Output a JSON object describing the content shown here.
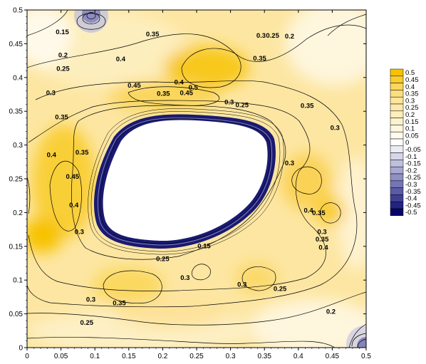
{
  "chart_data": {
    "type": "contour",
    "title": "",
    "xlabel": "",
    "ylabel": "",
    "xlim": [
      0,
      0.5
    ],
    "ylim": [
      0,
      0.5
    ],
    "x_ticks": [
      "0",
      "0.05",
      "0.1",
      "0.15",
      "0.2",
      "0.25",
      "0.3",
      "0.35",
      "0.4",
      "0.45",
      "0.5"
    ],
    "y_ticks": [
      "0",
      "0.05",
      "0.1",
      "0.15",
      "0.2",
      "0.25",
      "0.3",
      "0.35",
      "0.4",
      "0.45",
      "0.5"
    ],
    "legend": {
      "placement": "right",
      "levels": [
        "0.5",
        "0.45",
        "0.4",
        "0.35",
        "0.3",
        "0.25",
        "0.2",
        "0.15",
        "0.1",
        "0.05",
        "0",
        "-0.05",
        "-0.1",
        "-0.15",
        "-0.2",
        "-0.25",
        "-0.3",
        "-0.35",
        "-0.4",
        "-0.45",
        "-0.5"
      ],
      "colors": [
        "#f7c200",
        "#f9cd2e",
        "#fad65c",
        "#fcdf7d",
        "#fde59a",
        "#fde9ab",
        "#fdeebb",
        "#fdf2cc",
        "#fef6dd",
        "#fffbee",
        "#ffffff",
        "#ececf5",
        "#d6d6ea",
        "#c0c0de",
        "#a8a8d1",
        "#8f8fc4",
        "#7575b6",
        "#5a5aa6",
        "#3f3f95",
        "#232381",
        "#06066a"
      ]
    },
    "contour_labels": [
      {
        "text": "0.15",
        "x": 0.052,
        "y": 0.464
      },
      {
        "text": "0.35",
        "x": 0.185,
        "y": 0.461
      },
      {
        "text": "0.2",
        "x": 0.053,
        "y": 0.43
      },
      {
        "text": "0.3",
        "x": 0.345,
        "y": 0.459
      },
      {
        "text": "0.25",
        "x": 0.362,
        "y": 0.459
      },
      {
        "text": "0.2",
        "x": 0.387,
        "y": 0.458
      },
      {
        "text": "0.4",
        "x": 0.138,
        "y": 0.424
      },
      {
        "text": "0.25",
        "x": 0.053,
        "y": 0.41
      },
      {
        "text": "0.35",
        "x": 0.343,
        "y": 0.425
      },
      {
        "text": "0.45",
        "x": 0.158,
        "y": 0.385
      },
      {
        "text": "0.4",
        "x": 0.224,
        "y": 0.39
      },
      {
        "text": "0.5",
        "x": 0.245,
        "y": 0.382
      },
      {
        "text": "0.35",
        "x": 0.201,
        "y": 0.373
      },
      {
        "text": "0.45",
        "x": 0.235,
        "y": 0.374
      },
      {
        "text": "0.3",
        "x": 0.035,
        "y": 0.374
      },
      {
        "text": "0.35",
        "x": 0.413,
        "y": 0.355
      },
      {
        "text": "0.35",
        "x": 0.051,
        "y": 0.338
      },
      {
        "text": "0.3",
        "x": 0.454,
        "y": 0.322
      },
      {
        "text": "0.3",
        "x": 0.298,
        "y": 0.36
      },
      {
        "text": "0.25",
        "x": 0.317,
        "y": 0.356
      },
      {
        "text": "0.4",
        "x": 0.036,
        "y": 0.282
      },
      {
        "text": "0.35",
        "x": 0.081,
        "y": 0.286
      },
      {
        "text": "0.45",
        "x": 0.067,
        "y": 0.25
      },
      {
        "text": "0.4",
        "x": 0.069,
        "y": 0.208
      },
      {
        "text": "0.3",
        "x": 0.387,
        "y": 0.27
      },
      {
        "text": "0.3",
        "x": 0.077,
        "y": 0.168
      },
      {
        "text": "0.15",
        "x": 0.261,
        "y": 0.147
      },
      {
        "text": "0.4",
        "x": 0.415,
        "y": 0.2
      },
      {
        "text": "0.35",
        "x": 0.43,
        "y": 0.196
      },
      {
        "text": "0.3",
        "x": 0.435,
        "y": 0.168
      },
      {
        "text": "0.35",
        "x": 0.435,
        "y": 0.157
      },
      {
        "text": "0.4",
        "x": 0.437,
        "y": 0.145
      },
      {
        "text": "0.25",
        "x": 0.2,
        "y": 0.128
      },
      {
        "text": "0.3",
        "x": 0.233,
        "y": 0.1
      },
      {
        "text": "0.3",
        "x": 0.317,
        "y": 0.09
      },
      {
        "text": "0.3",
        "x": 0.094,
        "y": 0.068
      },
      {
        "text": "0.35",
        "x": 0.136,
        "y": 0.063
      },
      {
        "text": "0.25",
        "x": 0.373,
        "y": 0.084
      },
      {
        "text": "0.2",
        "x": 0.448,
        "y": 0.05
      },
      {
        "text": "0.25",
        "x": 0.088,
        "y": 0.034
      }
    ]
  }
}
